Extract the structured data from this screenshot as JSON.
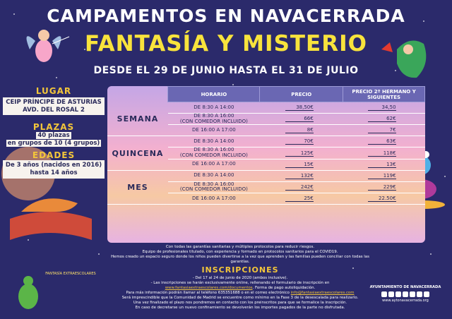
{
  "header": {
    "title1": "CAMPAMENTOS EN NAVACERRADA",
    "title2": "FANTASÍA Y MISTERIO",
    "subtitle": "DESDE EL 29 DE JUNIO HASTA EL 31 DE JULIO"
  },
  "lugar": {
    "head": "LUGAR",
    "place": "CEIP PRÍNCIPE DE ASTURIAS",
    "address": "AVD. DEL ROSAL 2"
  },
  "plazas": {
    "head": "PLAZAS",
    "line1": "40 plazas",
    "line2": "en grupos de 10 (4 grupos)"
  },
  "edades": {
    "head": "EDADES",
    "line1": "De 3 años (nacidos en 2016)",
    "line2": "hasta 14 años"
  },
  "table": {
    "headers": [
      "HORARIO",
      "PRECIO",
      "PRECIO 2º HERMANO Y SIGUIENTES"
    ],
    "groups": [
      {
        "name": "SEMANA",
        "rows": [
          {
            "hor1": "DE 8:30 A 14:00",
            "hor2": "",
            "p": "38,50€",
            "p2": "34,50"
          },
          {
            "hor1": "DE 8:30 A 16:00",
            "hor2": "(CON COMEDOR INCLUIDO)",
            "p": "66€",
            "p2": "62€"
          },
          {
            "hor1": "DE 16:00 A 17:00",
            "hor2": "",
            "p": "8€",
            "p2": "7€"
          }
        ]
      },
      {
        "name": "QUINCENA",
        "rows": [
          {
            "hor1": "DE 8:30 A 14:00",
            "hor2": "",
            "p": "70€",
            "p2": "63€"
          },
          {
            "hor1": "DE 8:30 A 16:00",
            "hor2": "(CON COMEDOR INCLUIDO)",
            "p": "125€",
            "p2": "118€"
          },
          {
            "hor1": "DE 16:00 A 17:00",
            "hor2": "",
            "p": "15€",
            "p2": "13€"
          }
        ]
      },
      {
        "name": "MES",
        "rows": [
          {
            "hor1": "DE 8:30 A 14:00",
            "hor2": "",
            "p": "132€",
            "p2": "119€"
          },
          {
            "hor1": "DE 8:30 A 16:00",
            "hor2": "(CON COMEDOR INCLUIDO)",
            "p": "242€",
            "p2": "229€"
          },
          {
            "hor1": "DE 16:00 A 17:00",
            "hor2": "",
            "p": "25€",
            "p2": "22.50€"
          }
        ]
      }
    ]
  },
  "notes": {
    "line1": "Con todas las garantías sanitarias y múltiples protocolos para reducir riesgos.",
    "line2": "Equipo de profesionales titulado, con experiencia y formado en protocolos sanitarios para el COVID19.",
    "line3": "Hemos creado un espacio seguro donde los niños pueden divertirse a la vez que aprenden y las familias pueden conciliar con todas las garantías."
  },
  "inscripciones": {
    "title": "INSCRIPCIONES",
    "line1": "- Del 17 al 24 de junio de 2020 (ambos inclusive).",
    "line2": "- Las inscripciones se harán exclusivamente online, rellenando el formulario de inscripción en",
    "link": "www.fantasiaextraescolares.com/documentos",
    "line3_suffix": ". Forma de pago autoliquidación.",
    "line4": "Para más información podrán llamar al teléfono 635351688 o en el correo electrónico",
    "email": "info@fantasiaextraescolares.com",
    "line5": "Será imprescindible que la Comunidad de Madrid se encuentre como mínimo en la Fase 3 de la desescalada para realizarlo.",
    "line6": "Una vez finalizado el plazo nos pondremos en contacto con los preinscritos para que se formalice la inscripción.",
    "line7": "En caso de decretarse un nuevo confinamiento se devolverán los importes pagados de la parte no disfrutada."
  },
  "logos": {
    "left_name": "FANTASÍA EXTRAESCOLARES",
    "right_name": "AYUNTAMIENTO DE NAVACERRADA",
    "right_site": "www.aytonavacerrada.org"
  },
  "colors": {
    "background": "#2b2a6b",
    "accent_yellow": "#f8e33c",
    "header_cell": "#6a67b3"
  }
}
